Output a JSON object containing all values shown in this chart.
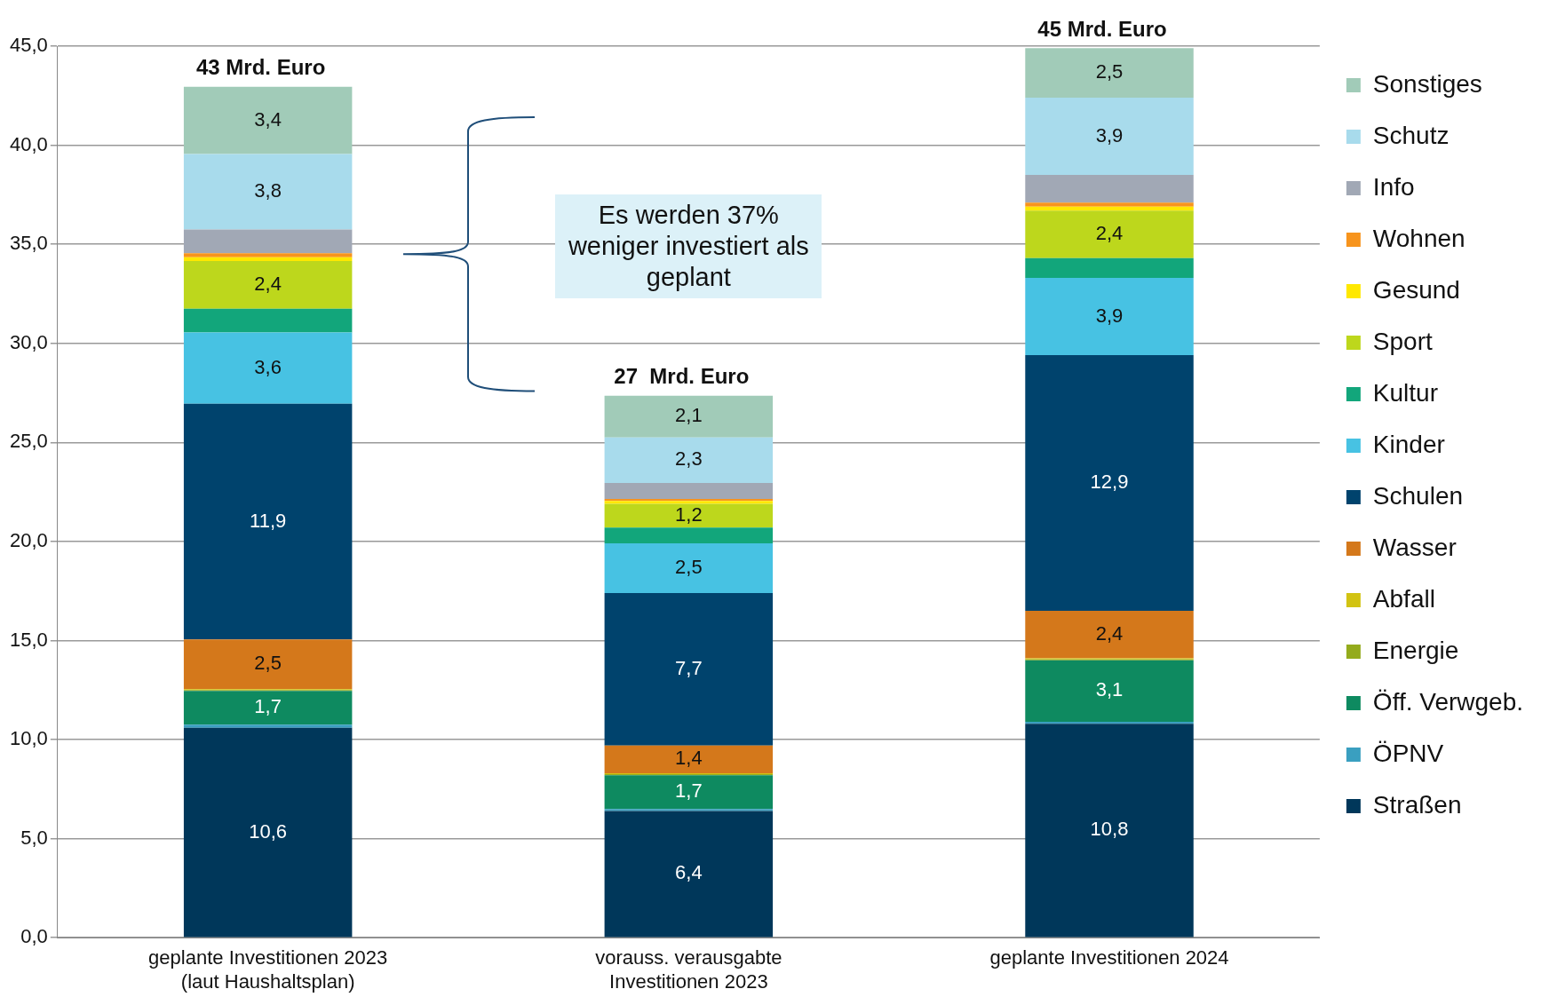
{
  "chart_data": {
    "type": "bar",
    "stacked": true,
    "categories": [
      "geplante Investitionen 2023 (laut Haushaltsplan)",
      "vorauss. verausgabte Investitionen 2023",
      "geplante Investitionen 2024"
    ],
    "series": [
      {
        "name": "Straßen",
        "color": "#00375a",
        "values": [
          10.6,
          6.4,
          10.8
        ],
        "value_labels": [
          "10,6",
          "6,4",
          "10,8"
        ]
      },
      {
        "name": "ÖPNV",
        "color": "#3a9fc0",
        "values": [
          0.15,
          0.1,
          0.1
        ]
      },
      {
        "name": "Öff. Verwgeb.",
        "color": "#0e8a60",
        "values": [
          1.7,
          1.7,
          3.1
        ],
        "value_labels": [
          "1,7",
          "1,7",
          "3,1"
        ]
      },
      {
        "name": "Energie",
        "color": "#94ab1c",
        "values": [
          0.05,
          0.05,
          0.05
        ]
      },
      {
        "name": "Abfall",
        "color": "#d2c312",
        "values": [
          0.05,
          0.05,
          0.05
        ]
      },
      {
        "name": "Wasser",
        "color": "#d4781b",
        "values": [
          2.5,
          1.4,
          2.4
        ],
        "value_labels": [
          "2,5",
          "1,4",
          "2,4"
        ]
      },
      {
        "name": "Schulen",
        "color": "#00436d",
        "values": [
          11.9,
          7.7,
          12.9
        ],
        "value_labels": [
          "11,9",
          "7,7",
          "12,9"
        ]
      },
      {
        "name": "Kinder",
        "color": "#47c2e3",
        "values": [
          3.6,
          2.5,
          3.9
        ],
        "value_labels": [
          "3,6",
          "2,5",
          "3,9"
        ]
      },
      {
        "name": "Kultur",
        "color": "#12a67b",
        "values": [
          1.2,
          0.8,
          1.0
        ]
      },
      {
        "name": "Sport",
        "color": "#bdd71c",
        "values": [
          2.4,
          1.2,
          2.4
        ],
        "value_labels": [
          "2,4",
          "1,2",
          "2,4"
        ]
      },
      {
        "name": "Gesund",
        "color": "#ffe800",
        "values": [
          0.2,
          0.15,
          0.2
        ]
      },
      {
        "name": "Wohnen",
        "color": "#f7941d",
        "values": [
          0.2,
          0.1,
          0.2
        ]
      },
      {
        "name": "Info",
        "color": "#a1a8b5",
        "values": [
          1.2,
          0.8,
          1.4
        ]
      },
      {
        "name": "Schutz",
        "color": "#a8dbec",
        "values": [
          3.8,
          2.3,
          3.9
        ],
        "value_labels": [
          "3,8",
          "2,3",
          "3,9"
        ]
      },
      {
        "name": "Sonstiges",
        "color": "#a1cbb8",
        "values": [
          3.4,
          2.1,
          2.5
        ],
        "value_labels": [
          "3,4",
          "2,1",
          "2,5"
        ]
      }
    ],
    "totals": [
      "43 Mrd. Euro",
      "27  Mrd. Euro",
      "45 Mrd. Euro"
    ],
    "annotations": [
      "Es werden 37% weniger investiert als geplant"
    ],
    "ylim": [
      0,
      45
    ],
    "yticks": [
      {
        "value": 0,
        "label": "0,0"
      },
      {
        "value": 5,
        "label": "5,0"
      },
      {
        "value": 10,
        "label": "10,0"
      },
      {
        "value": 15,
        "label": "15,0"
      },
      {
        "value": 20,
        "label": "20,0"
      },
      {
        "value": 25,
        "label": "25,0"
      },
      {
        "value": 30,
        "label": "30,0"
      },
      {
        "value": 35,
        "label": "35,0"
      },
      {
        "value": 40,
        "label": "40,0"
      },
      {
        "value": 45,
        "label": "45,0"
      }
    ],
    "grid": "y",
    "legend": "right"
  }
}
